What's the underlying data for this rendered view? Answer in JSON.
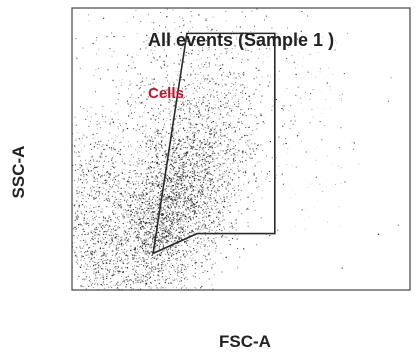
{
  "chart_data": {
    "type": "scatter",
    "title": "All events (Sample 1 )",
    "xlabel": "FSC-A",
    "ylabel": "SSC-A",
    "xlim": [
      0,
      100
    ],
    "ylim": [
      0,
      100
    ],
    "grid": false,
    "legend": "none",
    "gate": {
      "label": "Cells",
      "polygon": [
        [
          24,
          13
        ],
        [
          37,
          20
        ],
        [
          60,
          20
        ],
        [
          60,
          91
        ],
        [
          34,
          91
        ]
      ]
    },
    "density_regions": [
      {
        "x_center": 25,
        "y_center": 25,
        "x_spread": 7,
        "y_spread": 14,
        "density": "high"
      },
      {
        "x_center": 33,
        "y_center": 32,
        "x_spread": 8,
        "y_spread": 18,
        "density": "high"
      },
      {
        "x_center": 35,
        "y_center": 55,
        "x_spread": 12,
        "y_spread": 20,
        "density": "medium"
      },
      {
        "x_center": 7,
        "y_center": 22,
        "x_spread": 5,
        "y_spread": 20,
        "density": "medium"
      },
      {
        "x_center": 42,
        "y_center": 70,
        "x_spread": 20,
        "y_spread": 20,
        "density": "low"
      }
    ],
    "colors": {
      "points": "#111111",
      "gate_outline": "#2a2a2a",
      "gate_label": "#c8102e",
      "axes": "#444444"
    }
  }
}
